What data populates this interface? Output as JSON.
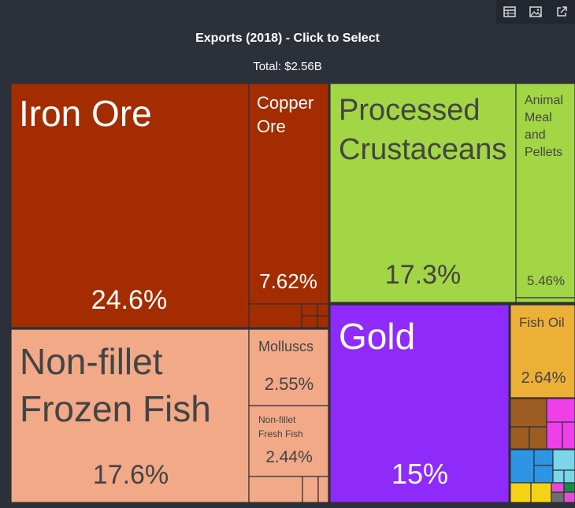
{
  "toolbar": {
    "buttons": [
      {
        "name": "table-view-button",
        "icon": "table-icon"
      },
      {
        "name": "image-export-button",
        "icon": "image-icon"
      },
      {
        "name": "open-external-button",
        "icon": "external-link-icon"
      }
    ]
  },
  "title": "Exports (2018) - Click to Select",
  "subtitle": "Total: $2.56B",
  "chart_data": {
    "type": "treemap",
    "title": "Exports (2018) - Click to Select",
    "total": "Total: $2.56B",
    "items": [
      {
        "label": "Iron Ore",
        "percent": "24.6%",
        "value": 24.6,
        "color": "#a32d00"
      },
      {
        "label": "Copper Ore",
        "percent": "7.62%",
        "value": 7.62,
        "color": "#a32d00"
      },
      {
        "label": "Processed Crustaceans",
        "percent": "17.3%",
        "value": 17.3,
        "color": "#a2d645"
      },
      {
        "label": "Animal Meal and Pellets",
        "percent": "5.46%",
        "value": 5.46,
        "color": "#a2d645"
      },
      {
        "label": "Non-fillet Frozen Fish",
        "percent": "17.6%",
        "value": 17.6,
        "color": "#f1a988"
      },
      {
        "label": "Molluscs",
        "percent": "2.55%",
        "value": 2.55,
        "color": "#f1a988"
      },
      {
        "label": "Non-fillet Fresh Fish",
        "percent": "2.44%",
        "value": 2.44,
        "color": "#f1a988"
      },
      {
        "label": "Gold",
        "percent": "15%",
        "value": 15,
        "color": "#8f2bfa"
      },
      {
        "label": "Fish Oil",
        "percent": "2.64%",
        "value": 2.64,
        "color": "#edb037"
      }
    ],
    "colors": {
      "minerals": "#a32d00",
      "animal": "#a2d645",
      "fish": "#f1a988",
      "gold": "#8f2bfa",
      "fats": "#edb037",
      "machines": "#2e95e5",
      "wood": "#9c5d22",
      "textiles": "#ef3fe8",
      "vegetables": "#f6d215",
      "chemicals": "#e74bd6",
      "instruments": "#7ad6e8",
      "transport": "#168c44",
      "metals": "#6f6f6f"
    }
  }
}
